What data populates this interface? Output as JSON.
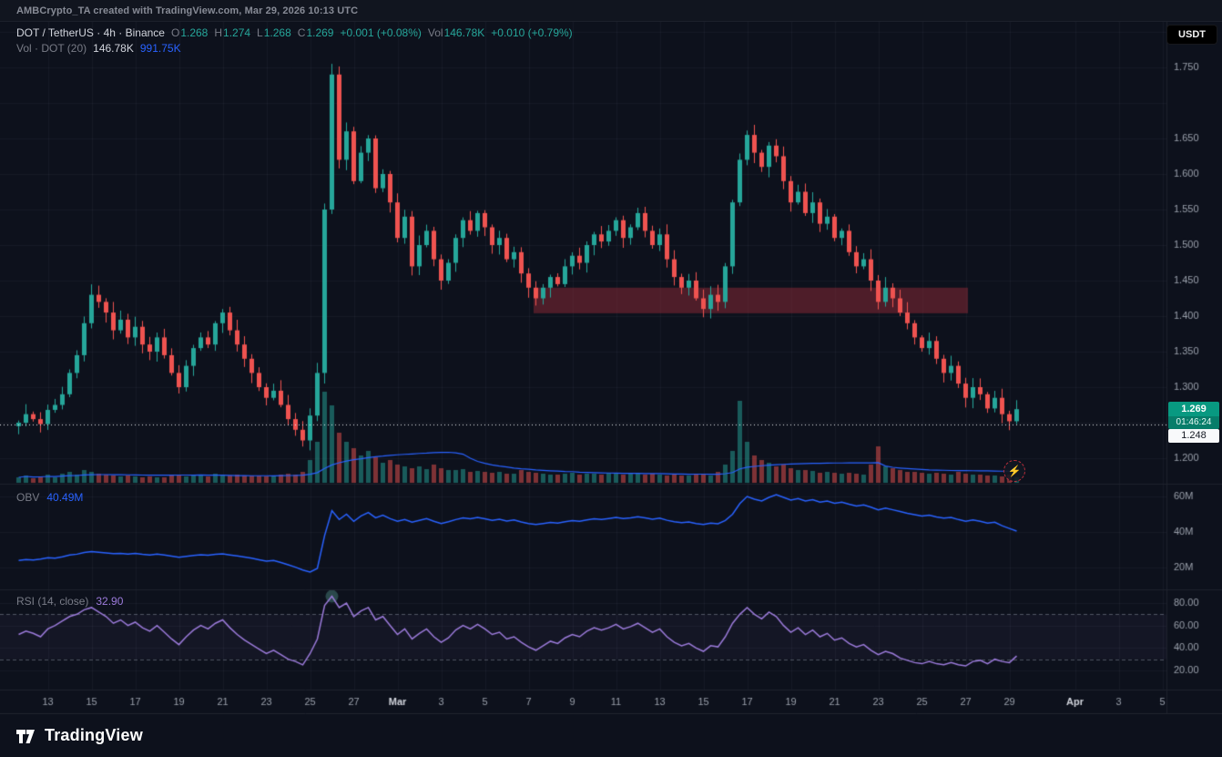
{
  "attribution": "AMBCrypto_TA created with TradingView.com, Mar 29, 2026 10:13 UTC",
  "currency_button": "USDT",
  "header": {
    "symbol": "DOT / TetherUS · 4h · Binance",
    "o_label": "O",
    "o": "1.268",
    "h_label": "H",
    "h": "1.274",
    "l_label": "L",
    "l": "1.268",
    "c_label": "C",
    "c": "1.269",
    "change": "+0.001 (+0.08%)",
    "vol_label": "Vol",
    "vol": "146.78K",
    "vol_change": "+0.010 (+0.79%)"
  },
  "volume_legend": {
    "label": "Vol · DOT (20)",
    "value": "146.78K",
    "ma_value": "991.75K"
  },
  "obv_legend": {
    "label": "OBV",
    "value": "40.49M"
  },
  "rsi_legend": {
    "label": "RSI (14, close)",
    "value": "32.90"
  },
  "badges": {
    "last_price": "1.269",
    "countdown": "01:46:24",
    "prev_close": "1.248"
  },
  "footer": {
    "brand": "TradingView"
  },
  "icons": {
    "lightning": "⚡"
  },
  "colors": {
    "bg": "#0d111c",
    "up": "#26a69a",
    "down": "#ef5350",
    "vol_up": "rgba(38,166,154,0.5)",
    "vol_down": "rgba(239,83,80,0.5)",
    "blue": "#2962ff",
    "purple": "#9c7bdb",
    "grid": "rgba(180,190,210,0.055)",
    "separator": "#1e222d",
    "axis_text": "#9aa0ab",
    "major_text": "#d1d4dc",
    "zone_fill": "rgba(150,44,56,0.48)",
    "dotted_line": "#eceff2",
    "badge_teal": "#089981"
  },
  "chart_data": [
    {
      "type": "candlestick",
      "title": "DOT / TetherUS 4h Binance",
      "first_open": 1.245,
      "closes": [
        1.25,
        1.262,
        1.255,
        1.248,
        1.268,
        1.275,
        1.29,
        1.32,
        1.345,
        1.39,
        1.43,
        1.42,
        1.405,
        1.38,
        1.395,
        1.37,
        1.385,
        1.36,
        1.35,
        1.37,
        1.345,
        1.32,
        1.3,
        1.33,
        1.355,
        1.37,
        1.36,
        1.39,
        1.405,
        1.38,
        1.36,
        1.34,
        1.32,
        1.3,
        1.285,
        1.295,
        1.275,
        1.255,
        1.24,
        1.225,
        1.26,
        1.32,
        1.55,
        1.74,
        1.62,
        1.66,
        1.59,
        1.63,
        1.65,
        1.58,
        1.6,
        1.56,
        1.51,
        1.54,
        1.47,
        1.5,
        1.52,
        1.48,
        1.45,
        1.475,
        1.51,
        1.535,
        1.52,
        1.545,
        1.525,
        1.5,
        1.51,
        1.48,
        1.49,
        1.46,
        1.44,
        1.425,
        1.44,
        1.455,
        1.445,
        1.47,
        1.485,
        1.475,
        1.5,
        1.515,
        1.505,
        1.52,
        1.535,
        1.51,
        1.525,
        1.545,
        1.52,
        1.5,
        1.515,
        1.48,
        1.455,
        1.44,
        1.45,
        1.425,
        1.41,
        1.43,
        1.42,
        1.47,
        1.56,
        1.62,
        1.655,
        1.63,
        1.61,
        1.64,
        1.625,
        1.59,
        1.56,
        1.575,
        1.545,
        1.56,
        1.53,
        1.54,
        1.51,
        1.52,
        1.49,
        1.47,
        1.48,
        1.45,
        1.42,
        1.44,
        1.425,
        1.405,
        1.39,
        1.37,
        1.355,
        1.365,
        1.34,
        1.32,
        1.33,
        1.305,
        1.285,
        1.3,
        1.29,
        1.27,
        1.285,
        1.262,
        1.252,
        1.269
      ],
      "volumes": [
        6,
        8,
        5,
        7,
        9,
        6,
        10,
        12,
        9,
        14,
        12,
        10,
        9,
        8,
        7,
        8,
        7,
        6,
        7,
        6,
        6,
        9,
        8,
        7,
        8,
        9,
        7,
        10,
        9,
        8,
        9,
        8,
        8,
        8,
        7,
        7,
        9,
        10,
        9,
        12,
        25,
        45,
        100,
        85,
        55,
        45,
        38,
        30,
        35,
        28,
        22,
        25,
        20,
        18,
        16,
        18,
        15,
        20,
        16,
        14,
        14,
        15,
        12,
        13,
        12,
        11,
        12,
        10,
        10,
        14,
        12,
        11,
        10,
        9,
        9,
        10,
        11,
        9,
        10,
        10,
        9,
        11,
        10,
        9,
        10,
        11,
        9,
        10,
        9,
        8,
        9,
        8,
        8,
        10,
        9,
        8,
        12,
        20,
        35,
        90,
        45,
        30,
        25,
        22,
        18,
        20,
        16,
        14,
        14,
        13,
        11,
        12,
        11,
        10,
        11,
        10,
        9,
        20,
        40,
        18,
        16,
        14,
        12,
        12,
        11,
        10,
        11,
        10,
        9,
        12,
        10,
        9,
        9,
        8,
        8,
        7,
        9,
        6
      ],
      "wick_overrides": {
        "43": {
          "high": 1.755
        },
        "137": {
          "low": 1.248
        }
      },
      "price_ticks": [
        "1.750",
        "1.650",
        "1.600",
        "1.550",
        "1.500",
        "1.450",
        "1.400",
        "1.350",
        "1.300",
        "1.200"
      ],
      "ylim": [
        1.193,
        1.814
      ],
      "zone": {
        "from_index": 71,
        "to_index": 130,
        "top": 1.44,
        "bottom": 1.404
      },
      "last_price": 1.269,
      "prev_close_line": 1.248,
      "time_ticks": [
        {
          "label": "13",
          "day": 1
        },
        {
          "label": "15",
          "day": 3
        },
        {
          "label": "17",
          "day": 5
        },
        {
          "label": "19",
          "day": 7
        },
        {
          "label": "21",
          "day": 9
        },
        {
          "label": "23",
          "day": 11
        },
        {
          "label": "25",
          "day": 13
        },
        {
          "label": "27",
          "day": 15
        },
        {
          "label": "Mar",
          "day": 17,
          "major": true
        },
        {
          "label": "3",
          "day": 19
        },
        {
          "label": "5",
          "day": 21
        },
        {
          "label": "7",
          "day": 23
        },
        {
          "label": "9",
          "day": 25
        },
        {
          "label": "11",
          "day": 27
        },
        {
          "label": "13",
          "day": 29
        },
        {
          "label": "15",
          "day": 31
        },
        {
          "label": "17",
          "day": 33
        },
        {
          "label": "19",
          "day": 35
        },
        {
          "label": "21",
          "day": 37
        },
        {
          "label": "23",
          "day": 39
        },
        {
          "label": "25",
          "day": 41
        },
        {
          "label": "27",
          "day": 43
        },
        {
          "label": "29",
          "day": 45
        },
        {
          "label": "Apr",
          "day": 48,
          "major": true
        },
        {
          "label": "3",
          "day": 50
        },
        {
          "label": "5",
          "day": 52
        }
      ]
    },
    {
      "type": "line",
      "name": "OBV",
      "last_value": 40.49,
      "unit": "M",
      "ticks": [
        "60M",
        "40M",
        "20M"
      ],
      "ylim": [
        15,
        65
      ],
      "values": [
        24,
        24.5,
        24.2,
        24.8,
        25.5,
        25.2,
        26,
        27,
        27.5,
        28.5,
        29,
        28.6,
        28.2,
        27.8,
        28,
        27.6,
        27.9,
        27.4,
        27.1,
        27.5,
        27,
        26.4,
        25.8,
        26.3,
        26.8,
        27.2,
        26.9,
        27.4,
        27.7,
        27.1,
        26.5,
        25.9,
        25.2,
        24.4,
        23.6,
        24,
        22.8,
        21.5,
        20.2,
        18.6,
        17.5,
        19.5,
        38,
        52,
        47,
        50,
        46,
        49,
        51,
        48,
        49.5,
        47.5,
        46,
        47,
        45.5,
        46.5,
        47.5,
        46,
        44.8,
        45.8,
        47,
        48,
        47.4,
        48.2,
        47.4,
        46.6,
        47.2,
        46.2,
        46.8,
        45.6,
        44.8,
        44.2,
        44.8,
        45.4,
        45,
        45.8,
        46.4,
        46,
        46.8,
        47.4,
        47,
        47.6,
        48.2,
        47.6,
        48,
        48.6,
        48,
        47.2,
        47.8,
        46.6,
        45.8,
        45.2,
        45.6,
        44.8,
        44.2,
        45,
        44.6,
        46.5,
        50,
        56,
        60,
        58.5,
        57.5,
        59.5,
        61,
        59.5,
        58,
        58.8,
        57.5,
        58.2,
        56.8,
        57.4,
        56.2,
        56.8,
        55.6,
        54.6,
        55.2,
        54,
        52.5,
        53.5,
        52.5,
        51.5,
        50.5,
        49.8,
        49,
        49.5,
        48.5,
        47.8,
        48.2,
        47,
        46,
        46.8,
        46,
        45,
        45.5,
        43.5,
        42,
        40.49
      ]
    },
    {
      "type": "line",
      "name": "RSI (14, close)",
      "last_value": 32.9,
      "ticks": [
        "80.00",
        "60.00",
        "40.00",
        "20.00"
      ],
      "levels": [
        70,
        30
      ],
      "ylim": [
        15,
        92
      ],
      "peak_marker_index": 43,
      "values": [
        52,
        55,
        53,
        50,
        57,
        60,
        64,
        68,
        70,
        74,
        76,
        72,
        68,
        62,
        65,
        60,
        63,
        58,
        55,
        60,
        54,
        48,
        43,
        50,
        56,
        60,
        57,
        62,
        65,
        58,
        52,
        47,
        43,
        39,
        35,
        38,
        34,
        30,
        28,
        25,
        35,
        48,
        78,
        86,
        76,
        80,
        68,
        73,
        76,
        65,
        68,
        60,
        52,
        57,
        48,
        53,
        57,
        50,
        45,
        49,
        56,
        60,
        57,
        61,
        57,
        52,
        54,
        48,
        50,
        45,
        41,
        38,
        42,
        46,
        44,
        49,
        52,
        50,
        55,
        58,
        56,
        58,
        61,
        57,
        59,
        62,
        58,
        54,
        57,
        50,
        45,
        42,
        44,
        40,
        37,
        42,
        41,
        50,
        62,
        70,
        76,
        70,
        66,
        72,
        68,
        60,
        54,
        58,
        52,
        56,
        50,
        53,
        47,
        49,
        44,
        41,
        43,
        38,
        34,
        37,
        35,
        31,
        29,
        27,
        26,
        28,
        26,
        25,
        27,
        25,
        24,
        28,
        29,
        26,
        30,
        28,
        27,
        32.9
      ]
    }
  ]
}
